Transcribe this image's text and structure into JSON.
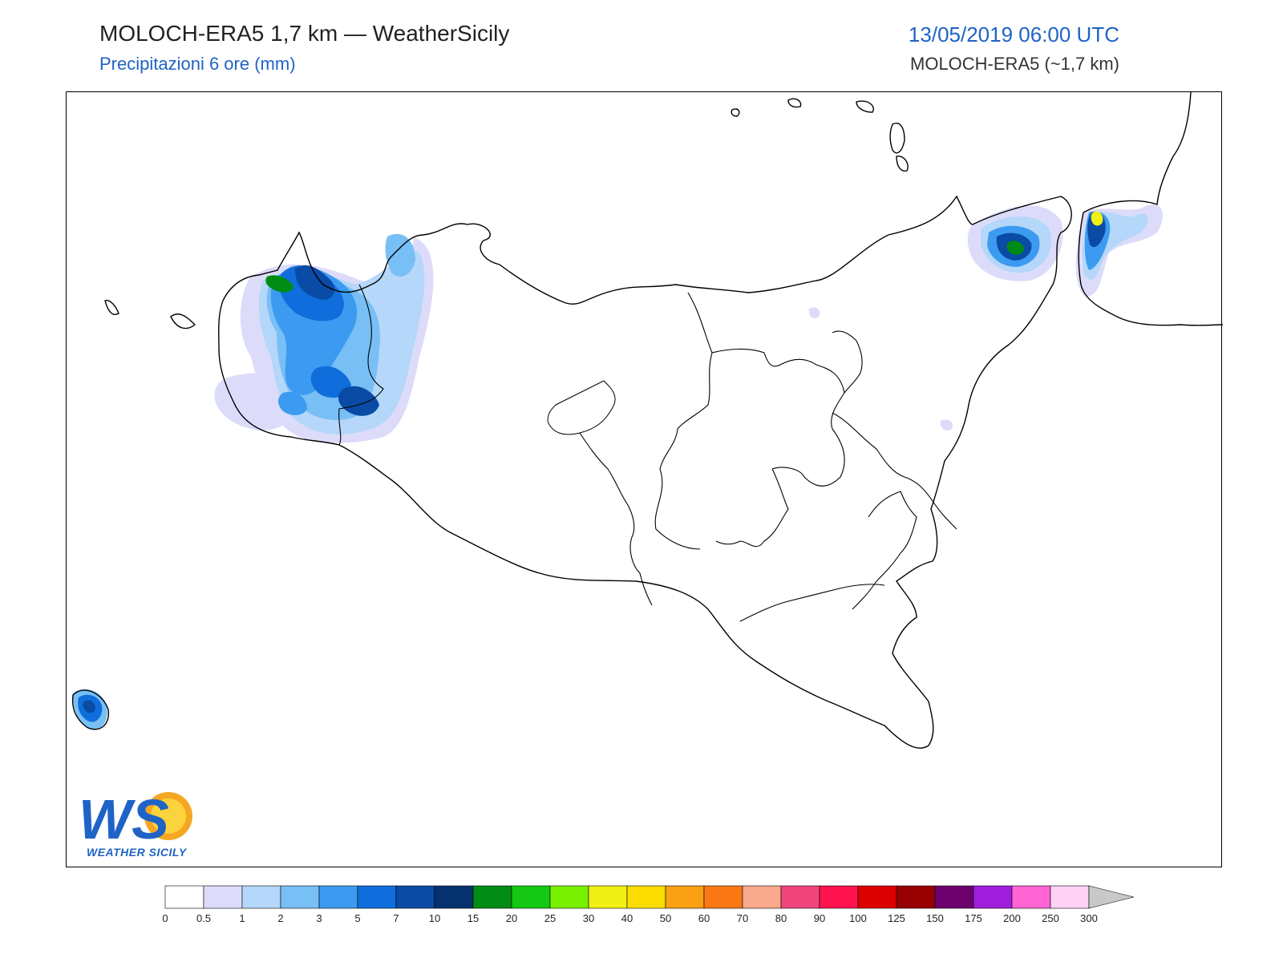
{
  "header": {
    "title": "MOLOCH-ERA5 1,7 km — WeatherSicily",
    "subtitle": "Precipitazioni 6 ore (mm)",
    "valid_time": "13/05/2019 06:00 UTC",
    "model_label": "MOLOCH-ERA5 (~1,7 km)"
  },
  "logo": {
    "text": "WS",
    "caption": "WEATHER SICILY"
  },
  "colorbar": {
    "colors": [
      "#ffffff",
      "#dcdcfa",
      "#b4d7fa",
      "#78bff5",
      "#3c9bf0",
      "#0f6edc",
      "#0a4ba5",
      "#05326e",
      "#008c14",
      "#14c814",
      "#78f000",
      "#f0f014",
      "#fadc00",
      "#faa014",
      "#fa7814",
      "#faaa8c",
      "#f0467d",
      "#ff1450",
      "#dc0000",
      "#960000",
      "#6e006e",
      "#a01edc",
      "#ff64d2",
      "#ffd2f5"
    ],
    "ticks": [
      "0",
      "0.5",
      "1",
      "2",
      "3",
      "5",
      "7",
      "10",
      "15",
      "20",
      "25",
      "30",
      "40",
      "50",
      "60",
      "70",
      "80",
      "90",
      "100",
      "125",
      "150",
      "175",
      "200",
      "250",
      "300"
    ],
    "extend_color": "#c8c8c8"
  },
  "precip_cells": [
    {
      "region": "north-west",
      "max_mm": 25
    },
    {
      "region": "tyrrhenian-east",
      "max_mm": 20
    },
    {
      "region": "calabria",
      "max_mm": 40
    },
    {
      "region": "pantelleria",
      "max_mm": 7
    }
  ]
}
